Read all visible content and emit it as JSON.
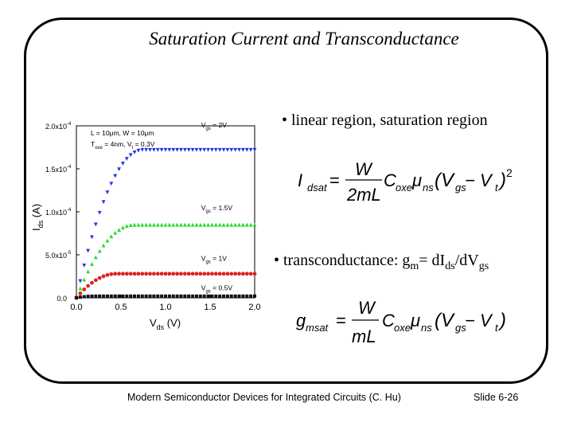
{
  "slide": {
    "title": "Saturation Current and Transconductance",
    "bullet1": "•  linear region, saturation region",
    "bullet2_prefix": "•  transconductance:  g",
    "bullet2_sub_m": "m",
    "bullet2_mid": "= dI",
    "bullet2_sub_ds": "ds",
    "bullet2_mid2": "/dV",
    "bullet2_sub_gs": "gs",
    "footer_left": "Modern Semiconductor Devices for Integrated Circuits (C. Hu)",
    "footer_right": "Slide 6-26"
  },
  "equations": {
    "idsat": {
      "lhs": "I",
      "lhs_sub": "dsat",
      "num": "W",
      "den": "2mL",
      "c": "C",
      "c_sub": "oxe",
      "mu": "μ",
      "mu_sub": "ns",
      "paren_open": "(V",
      "vgs_sub": "gs",
      "minus": " − V",
      "vt_sub": "t",
      "paren_close": ")",
      "exp": "2"
    },
    "gmsat": {
      "lhs": "g",
      "lhs_sub": "msat",
      "num": "W",
      "den": "mL",
      "c": "C",
      "c_sub": "oxe",
      "mu": "μ",
      "mu_sub": "ns",
      "paren_open": "(V",
      "vgs_sub": "gs",
      "minus": " − V",
      "vt_sub": "t",
      "paren_close": ")"
    }
  },
  "chart_data": {
    "type": "scatter",
    "xlabel_main": "V",
    "xlabel_sub": "ds",
    "xlabel_unit": " (V)",
    "ylabel_main": "I",
    "ylabel_sub": "ds",
    "ylabel_unit": " (A)",
    "xlim": [
      0,
      2.0
    ],
    "ylim": [
      0,
      0.0002
    ],
    "x_ticks": [
      "0.0",
      "0.5",
      "1.0",
      "1.5",
      "2.0"
    ],
    "y_ticks": [
      "0.0",
      "5.0x10",
      "1.0x10",
      "1.5x10",
      "2.0x10"
    ],
    "y_tick_exp": [
      "",
      "-5",
      "-4",
      "-4",
      "-4"
    ],
    "annotations": [
      "L = 10μm, W = 10μm",
      "T",
      "oxe",
      " = 4nm, V",
      "t",
      " = 0.3V"
    ],
    "series": [
      {
        "name": "V",
        "name_sub": "gs",
        "name_val": " = 2V",
        "vdsat": 0.75,
        "isat": 0.000172,
        "color": "#2233dd",
        "marker": "triangle-down"
      },
      {
        "name": "V",
        "name_sub": "gs",
        "name_val": " = 1.5V",
        "vdsat": 0.65,
        "isat": 8.5e-05,
        "color": "#22dd22",
        "marker": "triangle-up"
      },
      {
        "name": "V",
        "name_sub": "gs",
        "name_val": " = 1V",
        "vdsat": 0.45,
        "isat": 2.8e-05,
        "color": "#dd2222",
        "marker": "circle"
      },
      {
        "name": "V",
        "name_sub": "gs",
        "name_val": " = 0.5V",
        "vdsat": 0.2,
        "isat": 2e-06,
        "color": "#111111",
        "marker": "square"
      }
    ]
  }
}
